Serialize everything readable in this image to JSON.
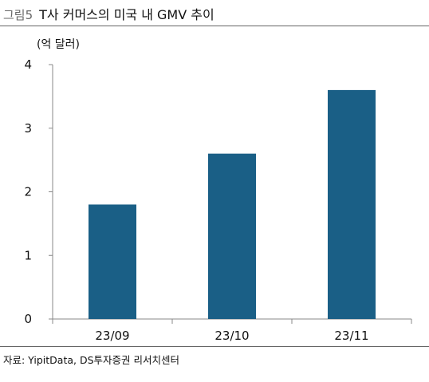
{
  "header": {
    "figure_label": "그림5",
    "title": "T사 커머스의 미국 내 GMV 추이"
  },
  "footer": {
    "source": "자료: YipitData, DS투자증권 리서치센터"
  },
  "chart_data": {
    "type": "bar",
    "title": "T사 커머스의 미국 내 GMV 추이",
    "unit_label": "(억 달러)",
    "xlabel": "",
    "ylabel": "",
    "categories": [
      "23/09",
      "23/10",
      "23/11"
    ],
    "values": [
      1.8,
      2.6,
      3.6
    ],
    "ylim": [
      0,
      4
    ],
    "yticks": [
      0,
      1,
      2,
      3,
      4
    ],
    "grid": false,
    "legend": "none",
    "colors": {
      "bar": "#1a5f86",
      "axis": "#888888"
    }
  }
}
